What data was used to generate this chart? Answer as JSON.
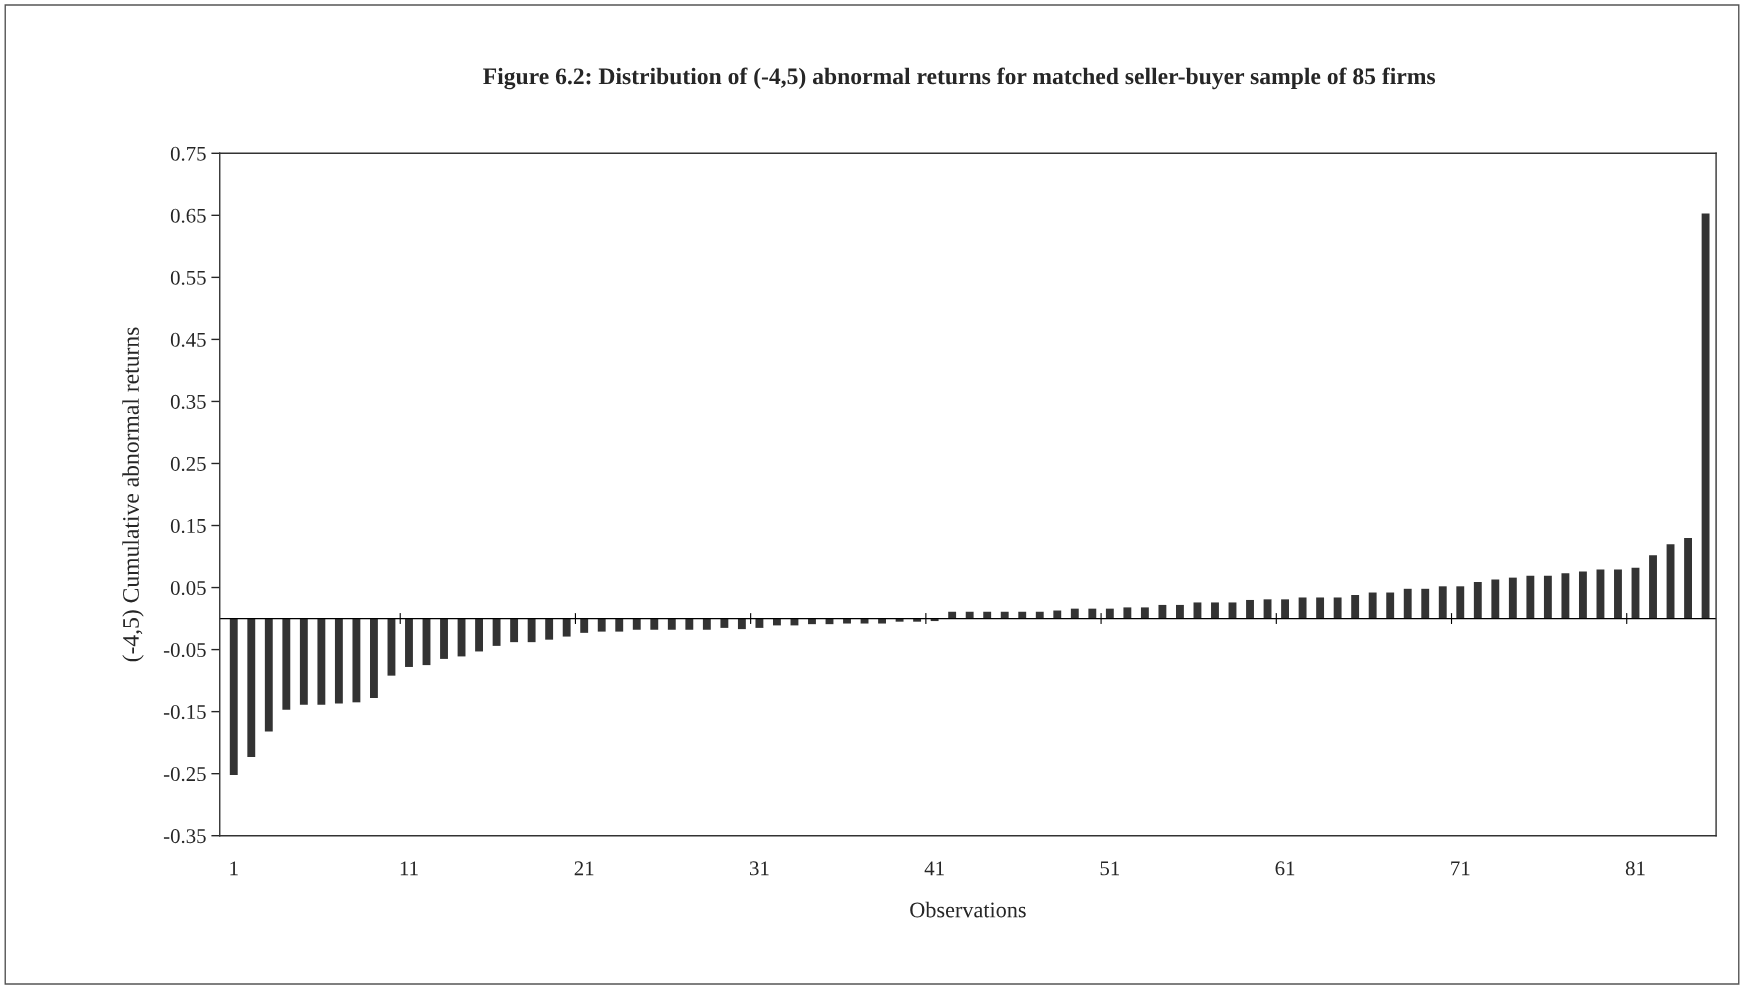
{
  "chart_data": {
    "type": "bar",
    "title": "Figure 6.2: Distribution of (-4,5) abnormal returns for matched seller-buyer sample of 85 firms",
    "xlabel": "Observations",
    "ylabel": "(-4,5) Cumulative abnormal returns",
    "categories": [
      "1",
      null,
      null,
      null,
      null,
      null,
      null,
      null,
      null,
      null,
      "11",
      null,
      null,
      null,
      null,
      null,
      null,
      null,
      null,
      null,
      "21",
      null,
      null,
      null,
      null,
      null,
      null,
      null,
      null,
      null,
      "31",
      null,
      null,
      null,
      null,
      null,
      null,
      null,
      null,
      null,
      "41",
      null,
      null,
      null,
      null,
      null,
      null,
      null,
      null,
      null,
      "51",
      null,
      null,
      null,
      null,
      null,
      null,
      null,
      null,
      null,
      "61",
      null,
      null,
      null,
      null,
      null,
      null,
      null,
      null,
      null,
      "71",
      null,
      null,
      null,
      null,
      null,
      null,
      null,
      null,
      null,
      "81",
      null,
      null,
      null,
      null
    ],
    "values": [
      -0.252,
      -0.223,
      -0.182,
      -0.147,
      -0.139,
      -0.139,
      -0.137,
      -0.135,
      -0.128,
      -0.092,
      -0.078,
      -0.075,
      -0.065,
      -0.061,
      -0.053,
      -0.044,
      -0.038,
      -0.038,
      -0.034,
      -0.029,
      -0.023,
      -0.021,
      -0.021,
      -0.018,
      -0.018,
      -0.018,
      -0.018,
      -0.018,
      -0.015,
      -0.017,
      -0.015,
      -0.011,
      -0.011,
      -0.009,
      -0.009,
      -0.008,
      -0.008,
      -0.008,
      -0.005,
      -0.005,
      -0.004,
      0.011,
      0.011,
      0.011,
      0.011,
      0.011,
      0.011,
      0.013,
      0.016,
      0.016,
      0.016,
      0.018,
      0.018,
      0.022,
      0.022,
      0.026,
      0.026,
      0.026,
      0.03,
      0.031,
      0.031,
      0.034,
      0.034,
      0.034,
      0.038,
      0.042,
      0.042,
      0.048,
      0.048,
      0.052,
      0.052,
      0.059,
      0.063,
      0.066,
      0.069,
      0.069,
      0.073,
      0.076,
      0.079,
      0.079,
      0.082,
      0.102,
      0.12,
      0.13,
      0.653
    ],
    "color": "#333333",
    "ylim": [
      -0.35,
      0.75
    ],
    "yticks": [
      -0.35,
      -0.25,
      -0.15,
      -0.05,
      0.05,
      0.15,
      0.25,
      0.35,
      0.45,
      0.55,
      0.65,
      0.75
    ],
    "grid": false,
    "legend": false
  }
}
